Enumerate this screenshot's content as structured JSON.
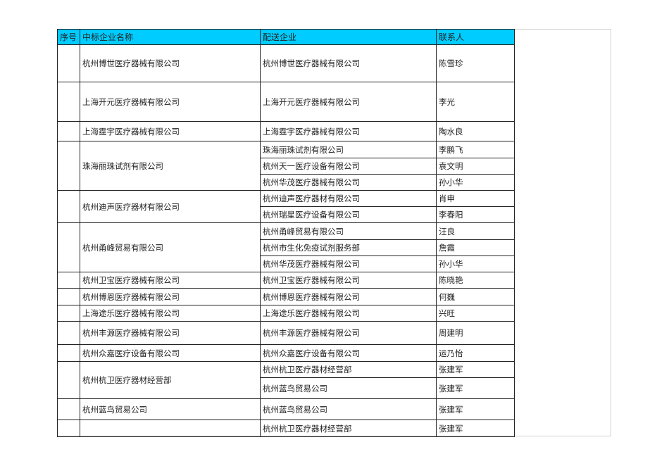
{
  "header": {
    "seq": "序号",
    "bidder": "中标企业名称",
    "distributor": "配送企业",
    "contact": "联系人"
  },
  "colors": {
    "header_bg": "#00ccff"
  },
  "groups": [
    {
      "seq": "",
      "bidder": "杭州博世医疗器械有限公司",
      "rows": [
        {
          "distributor": "杭州博世医疗器械有限公司",
          "contact": "陈雪珍"
        }
      ]
    },
    {
      "seq": "",
      "bidder": "上海开元医疗器械有限公司",
      "rows": [
        {
          "distributor": "上海开元医疗器械有限公司",
          "contact": "李光"
        }
      ]
    },
    {
      "seq": "",
      "bidder": "上海霆宇医疗器械有限公司",
      "rows": [
        {
          "distributor": "上海霆宇医疗器械有限公司",
          "contact": "陶水良"
        }
      ]
    },
    {
      "seq": "",
      "bidder": "珠海丽珠试剂有限公司",
      "rows": [
        {
          "distributor": "珠海丽珠试剂有限公司",
          "contact": "李鹏飞"
        },
        {
          "distributor": "杭州天一医疗设备有限公司",
          "contact": "袁文明"
        },
        {
          "distributor": "杭州华茂医疗器械有限公司",
          "contact": "孙小华"
        }
      ]
    },
    {
      "seq": "",
      "bidder": "杭州迪声医疗器材有限公司",
      "rows": [
        {
          "distributor": "杭州迪声医疗器材有限公司",
          "contact": "肖申"
        },
        {
          "distributor": "杭州瑞星医疗设备有限公司",
          "contact": "李春阳"
        }
      ]
    },
    {
      "seq": "",
      "bidder": "杭州甬峰贸易有限公司",
      "rows": [
        {
          "distributor": "杭州甬峰贸易有限公司",
          "contact": "汪良"
        },
        {
          "distributor": "杭州市生化免疫试剂服务部",
          "contact": "詹霞"
        },
        {
          "distributor": "杭州华茂医疗器械有限公司",
          "contact": "孙小华"
        }
      ]
    },
    {
      "seq": "",
      "bidder": "杭州卫宝医疗器械有限公司",
      "rows": [
        {
          "distributor": "杭州卫宝医疗器械有限公司",
          "contact": "陈晓艳"
        }
      ]
    },
    {
      "seq": "",
      "bidder": "杭州博恩医疗器械有限公司",
      "rows": [
        {
          "distributor": "杭州博恩医疗器械有限公司",
          "contact": "何巍"
        }
      ]
    },
    {
      "seq": "",
      "bidder": "上海途乐医疗器械有限公司",
      "rows": [
        {
          "distributor": "上海途乐医疗器械有限公司",
          "contact": "兴旺"
        }
      ]
    },
    {
      "seq": "",
      "bidder": "杭州丰源医疗器械有限公司",
      "rows": [
        {
          "distributor": "杭州丰源医疗器械有限公司",
          "contact": "周建明"
        }
      ]
    },
    {
      "seq": "",
      "bidder": "杭州众嘉医疗设备有限公司",
      "rows": [
        {
          "distributor": "杭州众嘉医疗设备有限公司",
          "contact": "运乃怡"
        }
      ]
    },
    {
      "seq": "",
      "bidder": "杭州杭卫医疗器材经营部",
      "rows": [
        {
          "distributor": "杭州杭卫医疗器材经营部",
          "contact": "张建军"
        },
        {
          "distributor": "杭州蓝鸟贸易公司",
          "contact": "张建军"
        }
      ]
    },
    {
      "seq": "",
      "bidder": "杭州蓝鸟贸易公司",
      "rows": [
        {
          "distributor": "杭州蓝鸟贸易公司",
          "contact": "张建军"
        }
      ]
    },
    {
      "seq": "",
      "bidder": "",
      "rows": [
        {
          "distributor": "杭州杭卫医疗器材经营部",
          "contact": "张建军"
        }
      ]
    }
  ]
}
